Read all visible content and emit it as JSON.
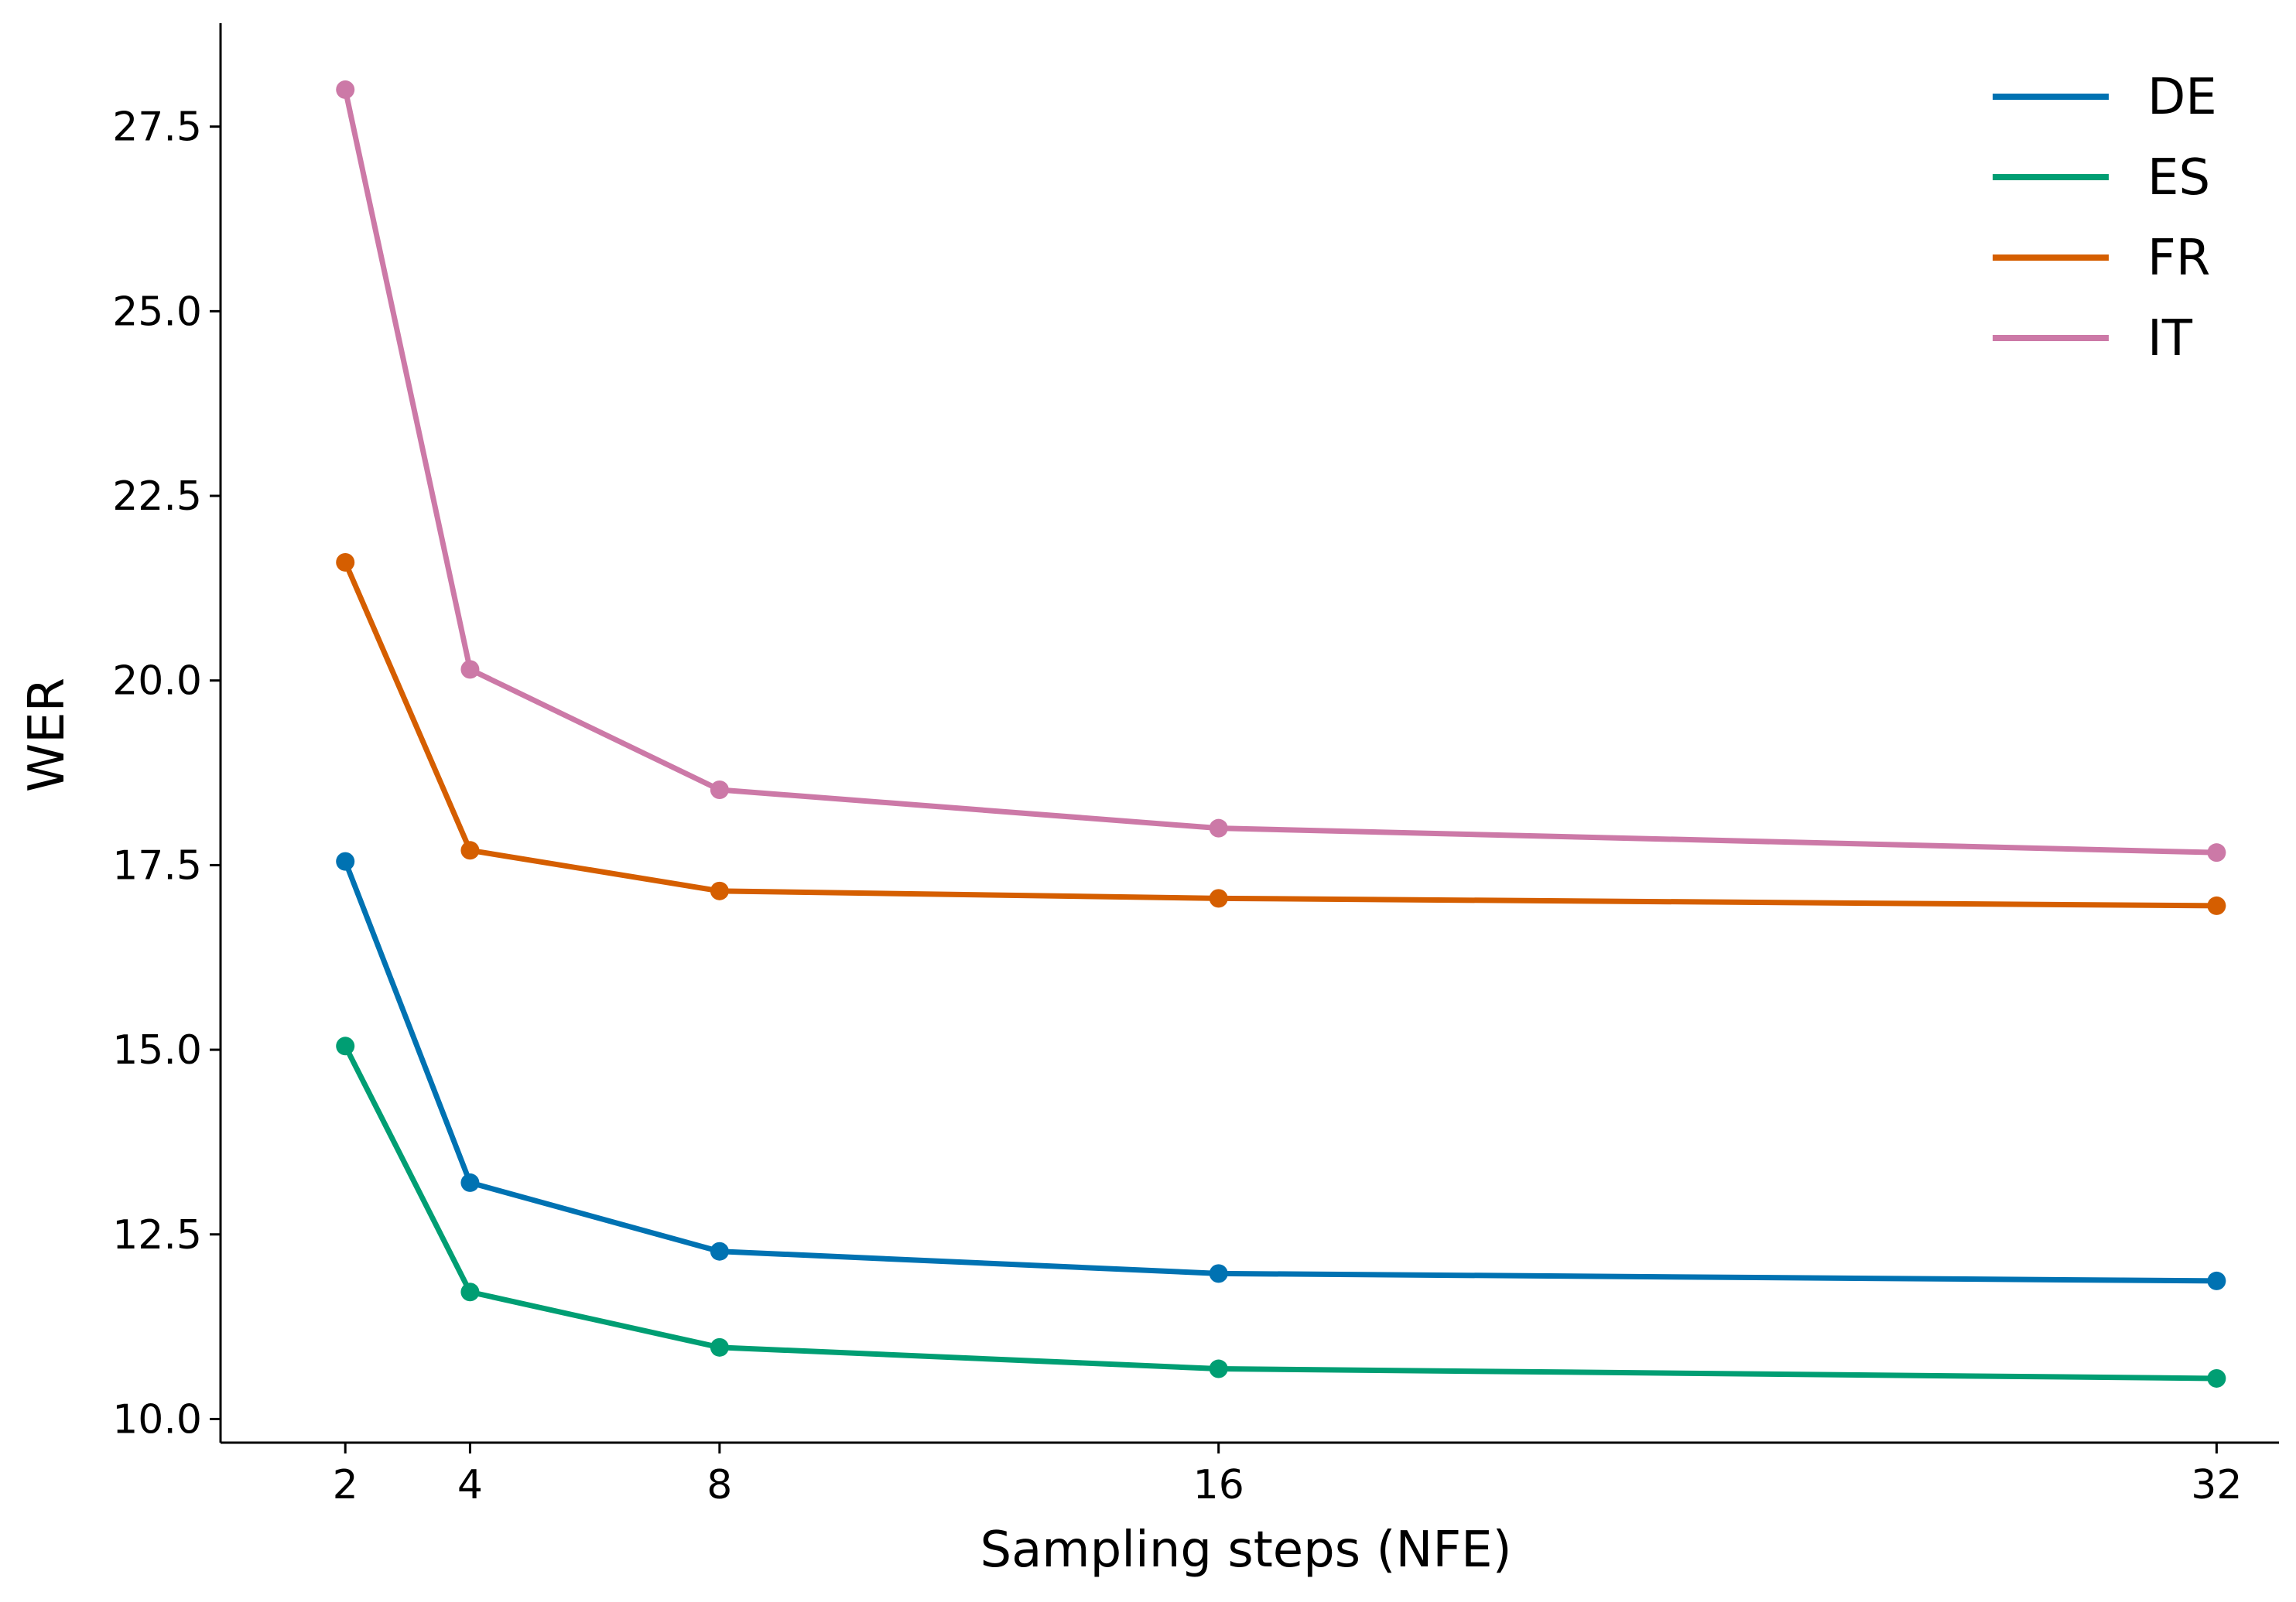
{
  "chart_data": {
    "type": "line",
    "title": "",
    "xlabel": "Sampling steps (NFE)",
    "ylabel": "WER",
    "x": [
      2,
      4,
      8,
      16,
      32
    ],
    "x_tick_labels": [
      "2",
      "4",
      "8",
      "16",
      "32"
    ],
    "y_ticks": [
      10.0,
      12.5,
      15.0,
      17.5,
      20.0,
      22.5,
      25.0,
      27.5
    ],
    "y_tick_labels": [
      "10.0",
      "12.5",
      "15.0",
      "17.5",
      "20.0",
      "22.5",
      "25.0",
      "27.5"
    ],
    "xlim": [
      0,
      33
    ],
    "ylim": [
      9.68,
      28.9
    ],
    "grid": false,
    "legend_position": "top-right",
    "series": [
      {
        "name": "DE",
        "color": "#0072B2",
        "values": [
          17.55,
          13.2,
          12.27,
          11.97,
          11.87
        ]
      },
      {
        "name": "ES",
        "color": "#009E73",
        "values": [
          15.05,
          11.72,
          10.97,
          10.68,
          10.55
        ]
      },
      {
        "name": "FR",
        "color": "#D55E00",
        "values": [
          21.6,
          17.7,
          17.15,
          17.05,
          16.95
        ]
      },
      {
        "name": "IT",
        "color": "#CC79A7",
        "values": [
          28.0,
          20.15,
          18.52,
          18.0,
          17.67
        ]
      }
    ]
  }
}
